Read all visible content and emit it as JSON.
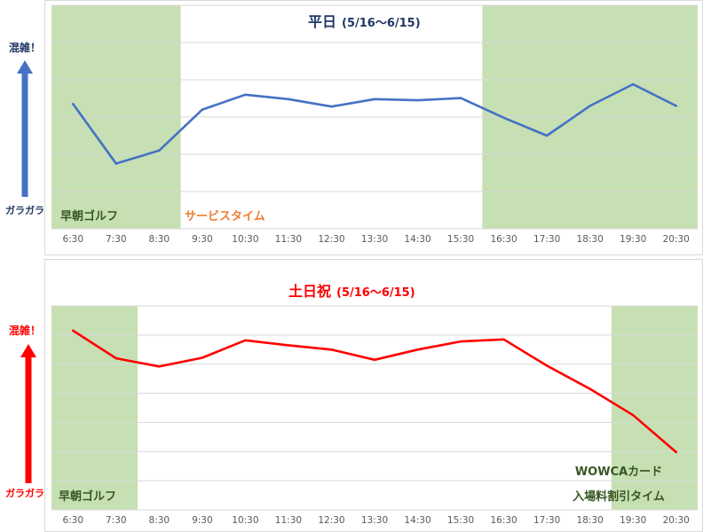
{
  "chart_data": [
    {
      "type": "line",
      "title": "平日",
      "subtitle": "(5/16〜6/15)",
      "title_color": "#1f3864",
      "series_color": "#4472c4",
      "axis_top_label": "混雑！",
      "axis_bottom_label": "ガラガラ",
      "axis_label_color": "#1f3864",
      "arrow_color": "#4472c4",
      "categories": [
        "6:30",
        "7:30",
        "8:30",
        "9:30",
        "10:30",
        "11:30",
        "12:30",
        "13:30",
        "14:30",
        "15:30",
        "16:30",
        "17:30",
        "18:30",
        "19:30",
        "20:30"
      ],
      "series": [
        {
          "values": [
            3.35,
            1.75,
            2.1,
            3.2,
            3.6,
            3.48,
            3.28,
            3.48,
            3.45,
            3.51,
            2.98,
            2.5,
            3.3,
            3.88,
            3.3
          ]
        }
      ],
      "ylim": [
        0,
        6
      ],
      "grid": true,
      "bands": [
        {
          "from": 0,
          "to": 3,
          "color": "#c6e0b4",
          "label": "早朝ゴルフ",
          "label_color": "#375623"
        },
        {
          "from": 10,
          "to": 15,
          "color": "#c6e0b4",
          "label": ""
        }
      ],
      "annotations": [
        {
          "text": "サービスタイム",
          "color": "#ed7d31"
        }
      ]
    },
    {
      "type": "line",
      "title": "土日祝",
      "subtitle": "(5/16〜6/15)",
      "title_color": "#ff0000",
      "series_color": "#ff0000",
      "axis_top_label": "混雑！",
      "axis_bottom_label": "ガラガラ",
      "axis_label_color": "#ff0000",
      "arrow_color": "#ff0000",
      "categories": [
        "6:30",
        "7:30",
        "8:30",
        "9:30",
        "10:30",
        "11:30",
        "12:30",
        "13:30",
        "14:30",
        "15:30",
        "16:30",
        "17:30",
        "18:30",
        "19:30",
        "20:30"
      ],
      "series": [
        {
          "values": [
            6.15,
            5.2,
            4.92,
            5.22,
            5.82,
            5.65,
            5.5,
            5.15,
            5.5,
            5.78,
            5.85,
            4.95,
            4.15,
            3.25,
            1.98
          ]
        }
      ],
      "ylim": [
        0,
        7
      ],
      "grid": true,
      "bands": [
        {
          "from": 0,
          "to": 2,
          "color": "#c6e0b4",
          "label": "早朝ゴルフ",
          "label_color": "#375623"
        },
        {
          "from": 13,
          "to": 15,
          "color": "#c6e0b4",
          "label": ""
        }
      ],
      "annotations": [
        {
          "text": "WOWCAカード",
          "color": "#375623"
        },
        {
          "text": "入場料割引タイム",
          "color": "#375623"
        }
      ]
    }
  ]
}
